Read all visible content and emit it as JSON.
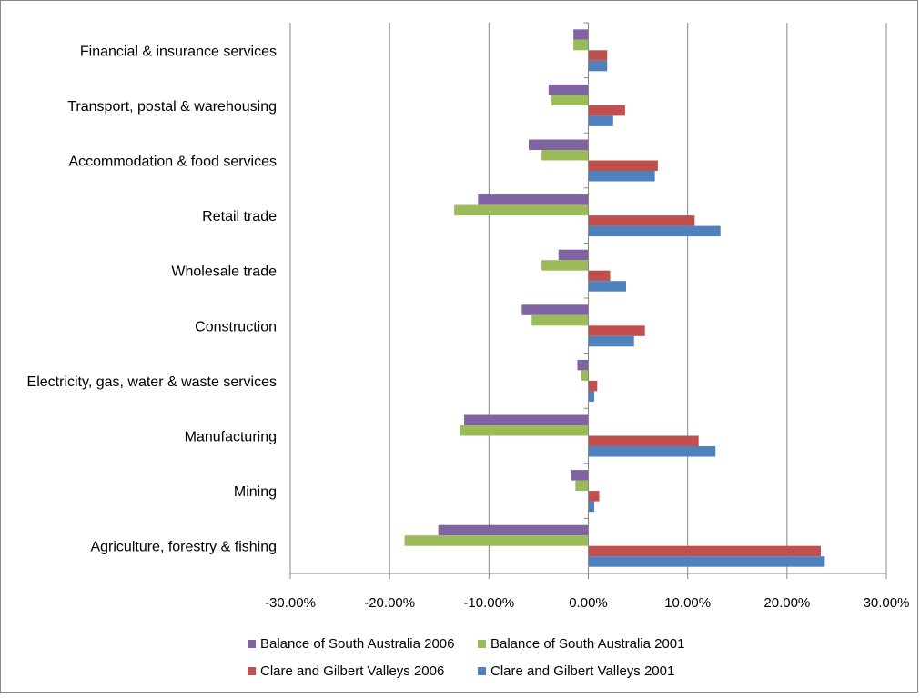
{
  "chart_data": {
    "type": "bar",
    "orientation": "horizontal",
    "categories": [
      "Agriculture, forestry & fishing",
      "Mining",
      "Manufacturing",
      "Electricity, gas, water & waste services",
      "Construction",
      "Wholesale trade",
      "Retail trade",
      "Accommodation & food services",
      "Transport, postal & warehousing",
      "Financial & insurance services"
    ],
    "series": [
      {
        "name": "Clare and Gilbert Valleys 2001",
        "color": "#4f81bd",
        "values": [
          23.8,
          0.6,
          12.8,
          0.6,
          4.6,
          3.8,
          13.3,
          6.7,
          2.5,
          1.9
        ]
      },
      {
        "name": "Clare and Gilbert Valleys 2006",
        "color": "#c0504d",
        "values": [
          23.4,
          1.1,
          11.1,
          0.9,
          5.7,
          2.2,
          10.7,
          7.0,
          3.7,
          1.9
        ]
      },
      {
        "name": "Balance of South Australia 2001",
        "color": "#9bbb59",
        "values": [
          -18.5,
          -1.3,
          -12.9,
          -0.7,
          -5.7,
          -4.7,
          -13.5,
          -4.7,
          -3.7,
          -1.5
        ]
      },
      {
        "name": "Balance of South Australia 2006",
        "color": "#8064a2",
        "values": [
          -15.1,
          -1.7,
          -12.5,
          -1.1,
          -6.7,
          -3.0,
          -11.1,
          -6.0,
          -4.0,
          -1.5
        ]
      }
    ],
    "xlim": [
      -30,
      30
    ],
    "xticks": [
      "-30.00%",
      "-20.00%",
      "-10.00%",
      "0.00%",
      "10.00%",
      "20.00%",
      "30.00%"
    ],
    "xgrid": true,
    "legend_order": [
      "Balance of South Australia 2006",
      "Balance of South Australia 2001",
      "Clare and Gilbert Valleys 2006",
      "Clare and Gilbert Valleys 2001"
    ],
    "legend_position": "bottom"
  }
}
